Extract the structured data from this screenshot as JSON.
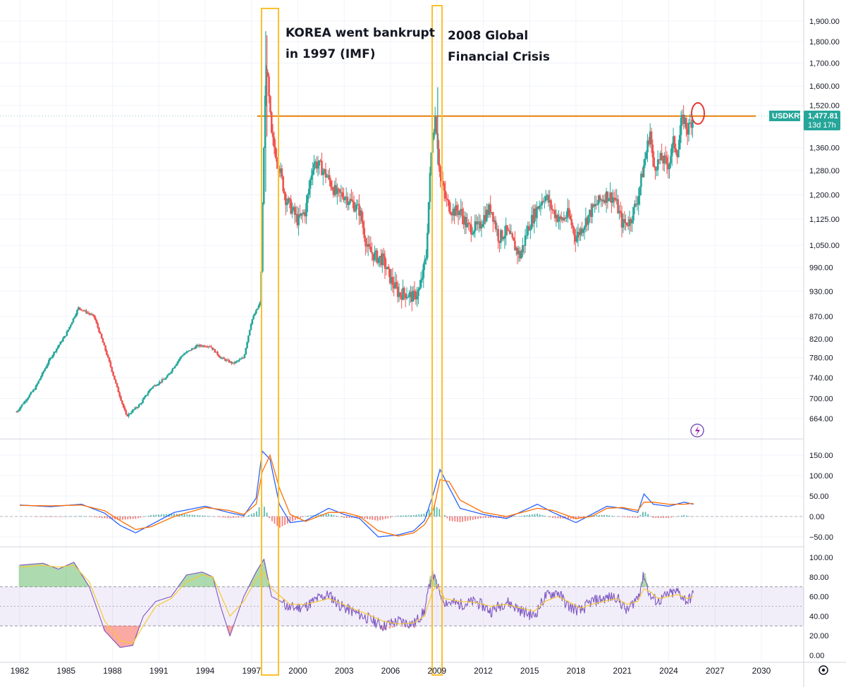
{
  "symbol": "USDKRW",
  "last_price": "1,477.81",
  "countdown": "13d 17h",
  "colors": {
    "up": "#26a69a",
    "down": "#ef5350",
    "macd": "#2962ff",
    "signal": "#ff6d00",
    "rsi": "#7e57c2",
    "rsi_ma": "#f7c934",
    "highlight": "#fbc02d",
    "resistance": "#f57c00",
    "circle": "#e53935"
  },
  "annotations": {
    "korea_line1": "KOREA went bankrupt",
    "korea_line2": "in 1997 (IMF)",
    "gfc_line1": "2008 Global",
    "gfc_line2": "Financial Crisis"
  },
  "chart_data": [
    {
      "type": "candlestick",
      "pane": "price",
      "symbol": "USDKRW",
      "y_ticks": [
        "1,900.00",
        "1,800.00",
        "1,700.00",
        "1,600.00",
        "1,520.00",
        "1,440.00",
        "1,360.00",
        "1,280.00",
        "1,200.00",
        "1,125.00",
        "1,050.00",
        "990.00",
        "930.00",
        "870.00",
        "820.00",
        "780.00",
        "740.00",
        "700.00",
        "664.00"
      ],
      "y_scale": "log",
      "resistance_level": 1478,
      "x": [
        1981.8,
        1983.0,
        1984.0,
        1985.0,
        1985.8,
        1986.8,
        1987.5,
        1988.3,
        1988.9,
        1989.8,
        1990.5,
        1991.5,
        1992.5,
        1993.5,
        1994.3,
        1995.0,
        1995.8,
        1996.5,
        1997.0,
        1997.6,
        1997.95,
        1998.3,
        1998.8,
        1999.2,
        2000.0,
        2000.5,
        2001.0,
        2001.5,
        2002.0,
        2002.5,
        2003.0,
        2004.0,
        2004.5,
        2005.0,
        2005.5,
        2006.0,
        2006.5,
        2007.0,
        2007.5,
        2007.9,
        2008.3,
        2008.7,
        2008.9,
        2009.2,
        2009.6,
        2010.0,
        2010.5,
        2011.0,
        2011.7,
        2012.0,
        2012.5,
        2013.0,
        2013.5,
        2014.0,
        2014.4,
        2014.9,
        2015.5,
        2016.0,
        2016.5,
        2017.0,
        2017.5,
        2018.0,
        2018.5,
        2019.0,
        2019.5,
        2020.0,
        2020.5,
        2021.0,
        2021.5,
        2022.0,
        2022.4,
        2022.8,
        2023.0,
        2023.5,
        2024.0,
        2024.3,
        2024.6,
        2024.8,
        2025.0,
        2025.2,
        2025.6
      ],
      "values": [
        676,
        720,
        780,
        830,
        890,
        870,
        800,
        720,
        668,
        690,
        720,
        740,
        785,
        805,
        805,
        780,
        768,
        780,
        860,
        905,
        1700,
        1400,
        1290,
        1190,
        1120,
        1150,
        1310,
        1290,
        1250,
        1200,
        1200,
        1150,
        1040,
        1020,
        1010,
        960,
        925,
        925,
        915,
        935,
        1020,
        1400,
        1480,
        1260,
        1180,
        1150,
        1150,
        1100,
        1100,
        1130,
        1160,
        1070,
        1090,
        1050,
        1020,
        1100,
        1160,
        1200,
        1150,
        1120,
        1140,
        1070,
        1110,
        1150,
        1180,
        1200,
        1190,
        1110,
        1120,
        1190,
        1300,
        1420,
        1290,
        1320,
        1300,
        1380,
        1340,
        1450,
        1470,
        1420,
        1478
      ],
      "legend": []
    },
    {
      "type": "line",
      "pane": "macd",
      "y_ticks": [
        "150.00",
        "100.00",
        "50.00",
        "0.00",
        "−50.00"
      ],
      "x": [
        1982,
        1984,
        1986,
        1987.5,
        1988.5,
        1989.5,
        1990.5,
        1992,
        1994,
        1995.5,
        1996.5,
        1997.3,
        1997.7,
        1998.2,
        1998.8,
        1999.5,
        2000.5,
        2002,
        2003,
        2004,
        2005.2,
        2006.5,
        2007.5,
        2008.2,
        2008.8,
        2009.2,
        2009.8,
        2010.5,
        2012,
        2013.5,
        2015.5,
        2016.5,
        2018,
        2019,
        2020,
        2021,
        2022,
        2022.4,
        2023,
        2024,
        2025,
        2025.6
      ],
      "series": [
        {
          "values": [
            28,
            24,
            30,
            8,
            -22,
            -40,
            -20,
            10,
            25,
            10,
            2,
            45,
            160,
            140,
            30,
            -15,
            -10,
            20,
            5,
            -5,
            -50,
            -45,
            -35,
            -10,
            60,
            115,
            70,
            20,
            5,
            -5,
            30,
            10,
            -15,
            5,
            25,
            20,
            10,
            55,
            30,
            25,
            35,
            30
          ]
        },
        {
          "values": [
            27,
            26,
            28,
            14,
            -10,
            -32,
            -25,
            0,
            22,
            15,
            5,
            30,
            110,
            150,
            70,
            5,
            -12,
            10,
            10,
            0,
            -35,
            -48,
            -40,
            -20,
            20,
            90,
            85,
            40,
            10,
            0,
            20,
            15,
            -5,
            0,
            20,
            22,
            15,
            35,
            35,
            30,
            30,
            32
          ]
        }
      ],
      "histogram_peaks": {
        "1997.7": 50,
        "1998.8": -35,
        "2009.2": 30,
        "2010.0": -25,
        "2022.4": 20
      }
    },
    {
      "type": "line",
      "pane": "rsi",
      "y_ticks": [
        "100.00",
        "80.00",
        "60.00",
        "40.00",
        "20.00",
        "0.00"
      ],
      "band": [
        30,
        70
      ],
      "mid": 50,
      "x": [
        1982,
        1983.5,
        1984.5,
        1985.5,
        1986.5,
        1987.5,
        1988.5,
        1989.3,
        1990,
        1990.8,
        1991.8,
        1992.8,
        1993.8,
        1994.5,
        1995,
        1995.6,
        1996.5,
        1997.3,
        1997.8,
        1998.3,
        1998.9,
        1999.5,
        2000.5,
        2001.3,
        2002,
        2002.8,
        2003.5,
        2004.5,
        2005.5,
        2006.5,
        2007.5,
        2008.2,
        2008.7,
        2009.0,
        2009.5,
        2010.5,
        2011.5,
        2012.5,
        2013.5,
        2014.5,
        2015.3,
        2016,
        2016.8,
        2017.5,
        2018.3,
        2019,
        2019.8,
        2020.6,
        2021.3,
        2022.0,
        2022.4,
        2022.8,
        2023.3,
        2024,
        2024.6,
        2025.2,
        2025.6
      ],
      "series": [
        {
          "values": [
            92,
            94,
            88,
            95,
            70,
            25,
            8,
            10,
            40,
            55,
            60,
            82,
            85,
            80,
            50,
            20,
            60,
            85,
            98,
            60,
            55,
            48,
            50,
            58,
            62,
            50,
            45,
            38,
            30,
            35,
            32,
            45,
            86,
            70,
            55,
            52,
            55,
            45,
            55,
            45,
            40,
            60,
            65,
            50,
            45,
            55,
            58,
            60,
            45,
            60,
            82,
            60,
            55,
            62,
            65,
            55,
            62
          ]
        },
        {
          "values": [
            90,
            92,
            90,
            92,
            75,
            35,
            15,
            12,
            30,
            50,
            58,
            75,
            82,
            80,
            62,
            40,
            55,
            78,
            85,
            68,
            60,
            52,
            52,
            55,
            58,
            53,
            48,
            42,
            35,
            32,
            33,
            40,
            65,
            72,
            58,
            55,
            54,
            50,
            52,
            48,
            45,
            55,
            60,
            55,
            48,
            52,
            55,
            58,
            52,
            55,
            68,
            65,
            58,
            60,
            62,
            58,
            60
          ]
        }
      ]
    }
  ],
  "x_ticks": [
    "1982",
    "1985",
    "1988",
    "1991",
    "1994",
    "1997",
    "2000",
    "2003",
    "2006",
    "2009",
    "2012",
    "2015",
    "2018",
    "2021",
    "2024",
    "2027",
    "2030"
  ]
}
